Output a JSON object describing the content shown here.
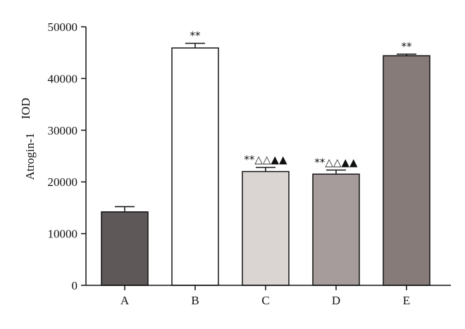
{
  "chart_data": {
    "type": "bar",
    "title": "",
    "xlabel": "",
    "ylabel": "Atrogin-1",
    "ylabel_unit": "IOD",
    "categories": [
      "A",
      "B",
      "C",
      "D",
      "E"
    ],
    "values": [
      14200,
      45900,
      22000,
      21500,
      44400
    ],
    "errors": [
      1000,
      900,
      800,
      800,
      300
    ],
    "annotations": [
      "",
      "**",
      "**△△▲▲",
      "**△△▲▲",
      "**"
    ],
    "bar_colors": [
      "#5e5859",
      "#ffffff",
      "#dad5d2",
      "#a69c9b",
      "#867b79"
    ],
    "ylim": [
      0,
      50000
    ],
    "yticks": [
      0,
      10000,
      20000,
      30000,
      40000,
      50000
    ],
    "grid": false,
    "legend": false
  }
}
